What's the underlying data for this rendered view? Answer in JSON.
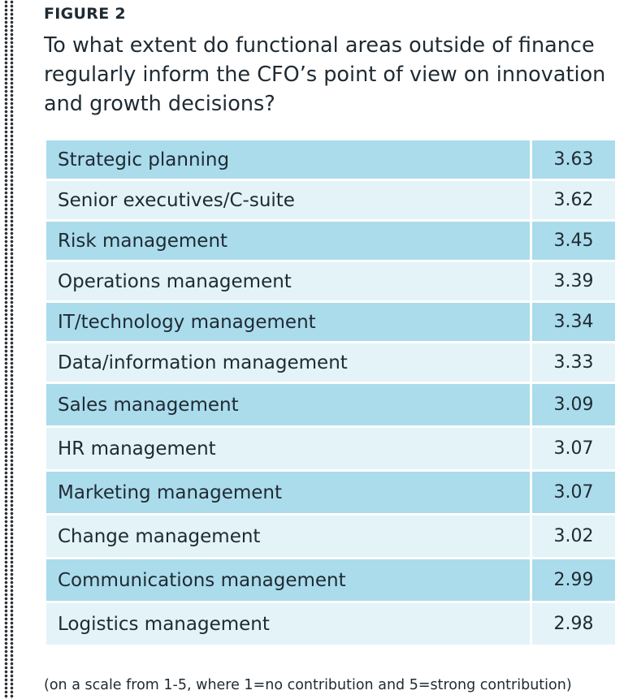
{
  "figure_label": "FIGURE 2",
  "title": "To what extent do functional areas outside of finance regularly inform the CFO’s point of view on innovation and growth decisions?",
  "footnote": "(on a scale from 1-5, where 1=no contribution and 5=strong contribution)",
  "colors": {
    "row_dark": "#abdcec",
    "row_light": "#e3f3f8",
    "text": "#1f2a32"
  },
  "chart_data": {
    "type": "table",
    "rows": [
      {
        "label": "Strategic planning",
        "value": "3.63"
      },
      {
        "label": "Senior executives/C-suite",
        "value": "3.62"
      },
      {
        "label": "Risk management",
        "value": "3.45"
      },
      {
        "label": "Operations management",
        "value": "3.39"
      },
      {
        "label": "IT/technology management",
        "value": "3.34"
      },
      {
        "label": "Data/information management",
        "value": "3.33"
      },
      {
        "label": "Sales management",
        "value": "3.09"
      },
      {
        "label": "HR management",
        "value": "3.07"
      },
      {
        "label": "Marketing management",
        "value": "3.07"
      },
      {
        "label": "Change management",
        "value": "3.02"
      },
      {
        "label": "Communications management",
        "value": "2.99"
      },
      {
        "label": "Logistics management",
        "value": "2.98"
      }
    ]
  }
}
